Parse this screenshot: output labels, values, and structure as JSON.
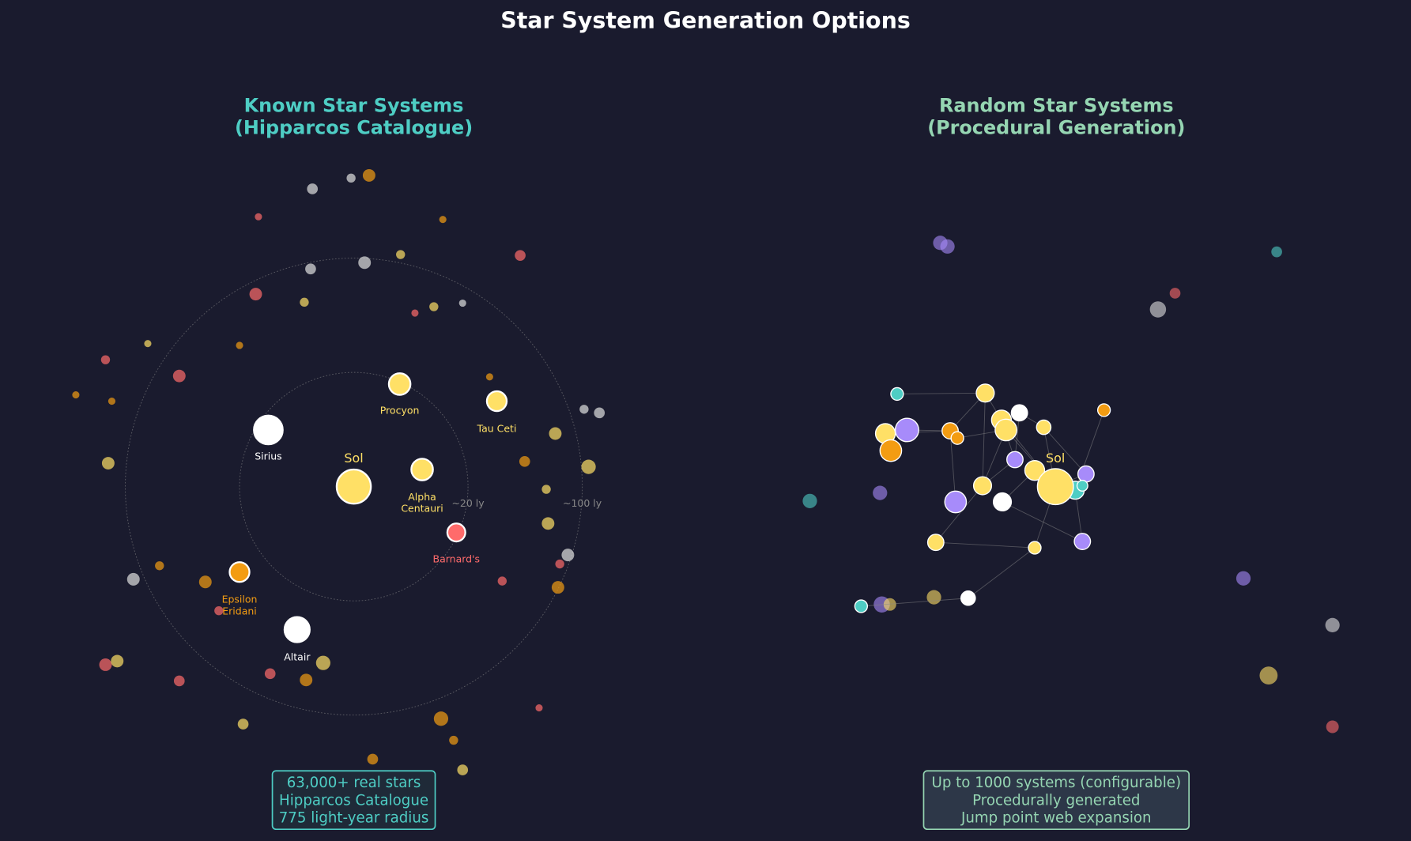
{
  "title": "Star System Generation Options",
  "panels": [
    {
      "title": [
        "Known Star Systems",
        "(Hipparcos Catalogue)"
      ],
      "stars": [
        {
          "label": [
            "Sol"
          ]
        },
        {
          "label": [
            "Procyon"
          ]
        },
        {
          "label": [
            "Tau Ceti"
          ]
        },
        {
          "label": [
            "Sirius"
          ]
        },
        {
          "label": [
            "Alpha",
            "Centauri"
          ]
        },
        {
          "label": [
            "Barnard's"
          ]
        },
        {
          "label": [
            "Epsilon",
            "Eridani"
          ]
        },
        {
          "label": [
            "Altair"
          ]
        }
      ],
      "rings": [
        "~20 ly",
        "~100 ly"
      ],
      "info": [
        "63,000+ real stars",
        "Hipparcos Catalogue",
        "775 light-year radius"
      ]
    },
    {
      "title": [
        "Random Star Systems",
        "(Procedural Generation)"
      ],
      "stars": [
        {
          "label": [
            "Sol"
          ]
        }
      ],
      "info": [
        "Up to 1000 systems (configurable)",
        "Procedurally generated",
        "Jump point web expansion"
      ]
    }
  ]
}
